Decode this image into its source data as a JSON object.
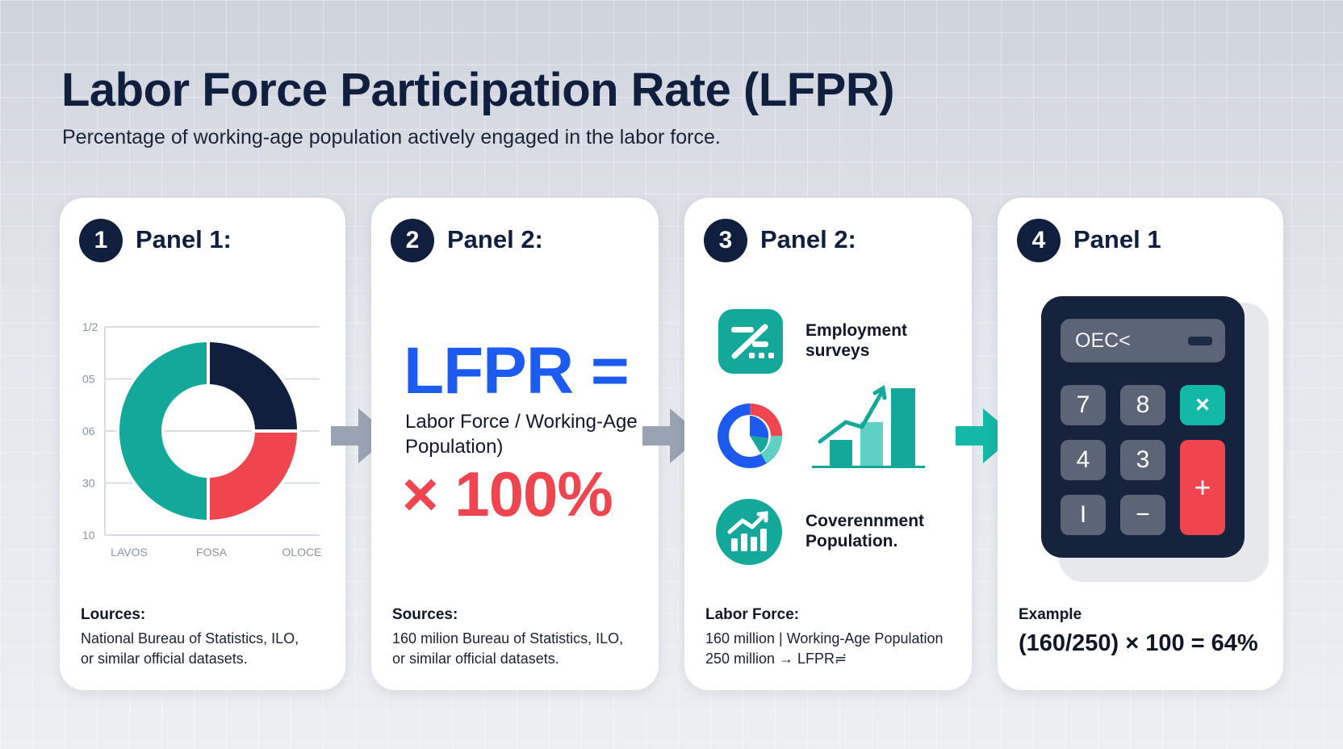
{
  "header": {
    "title": "Labor Force Participation Rate (LFPR)",
    "subtitle": "Percentage of working-age population actively engaged in the labor force."
  },
  "panels": [
    {
      "number": "1",
      "title": "Panel 1:",
      "caption_heading": "Lources:",
      "caption_line1": "National Bureau of Statistics, ILO,",
      "caption_line2": "or similar official datasets."
    },
    {
      "number": "2",
      "title": "Panel 2:",
      "formula_main": "LFPR =",
      "formula_sub": "Labor Force / Working-Age Population)",
      "formula_mult": "× 100%",
      "caption_heading": "Sources:",
      "caption_line1": "160 milion Bureau of Statistics, ILO,",
      "caption_line2": "or similar official datasets."
    },
    {
      "number": "3",
      "title": "Panel 2:",
      "sources": [
        {
          "label": "Employment surveys",
          "icon": "survey-icon"
        },
        {
          "label": "Coverennment Population.",
          "icon": "government-growth-icon"
        }
      ],
      "caption_heading": "Labor Force:",
      "caption_line1": "160 million | Working-Age Population",
      "caption_line2": "250 million → LFPR≓"
    },
    {
      "number": "4",
      "title": "Panel 1",
      "calculator": {
        "display": "OEC<",
        "keys": [
          "7",
          "8",
          "×",
          "4",
          "3",
          "+",
          "I",
          "−"
        ]
      },
      "caption_heading": "Example",
      "example": "(160/250) × 100 = 64%"
    }
  ],
  "chart_data": {
    "type": "pie",
    "variant": "donut",
    "y_tick_labels": [
      "1/2",
      "05",
      "06",
      "30",
      "10"
    ],
    "x_tick_labels": [
      "LAVOS",
      "FOSA",
      "OLOCE"
    ],
    "values": [
      50,
      25,
      25
    ],
    "colors": [
      "#14a89a",
      "#0f1f3d",
      "#f0444e"
    ]
  },
  "colors": {
    "navy": "#0f1f3d",
    "blue": "#1d5bf0",
    "red": "#f0444e",
    "teal": "#14a89a",
    "arrow_gray": "#9aa3b2"
  }
}
